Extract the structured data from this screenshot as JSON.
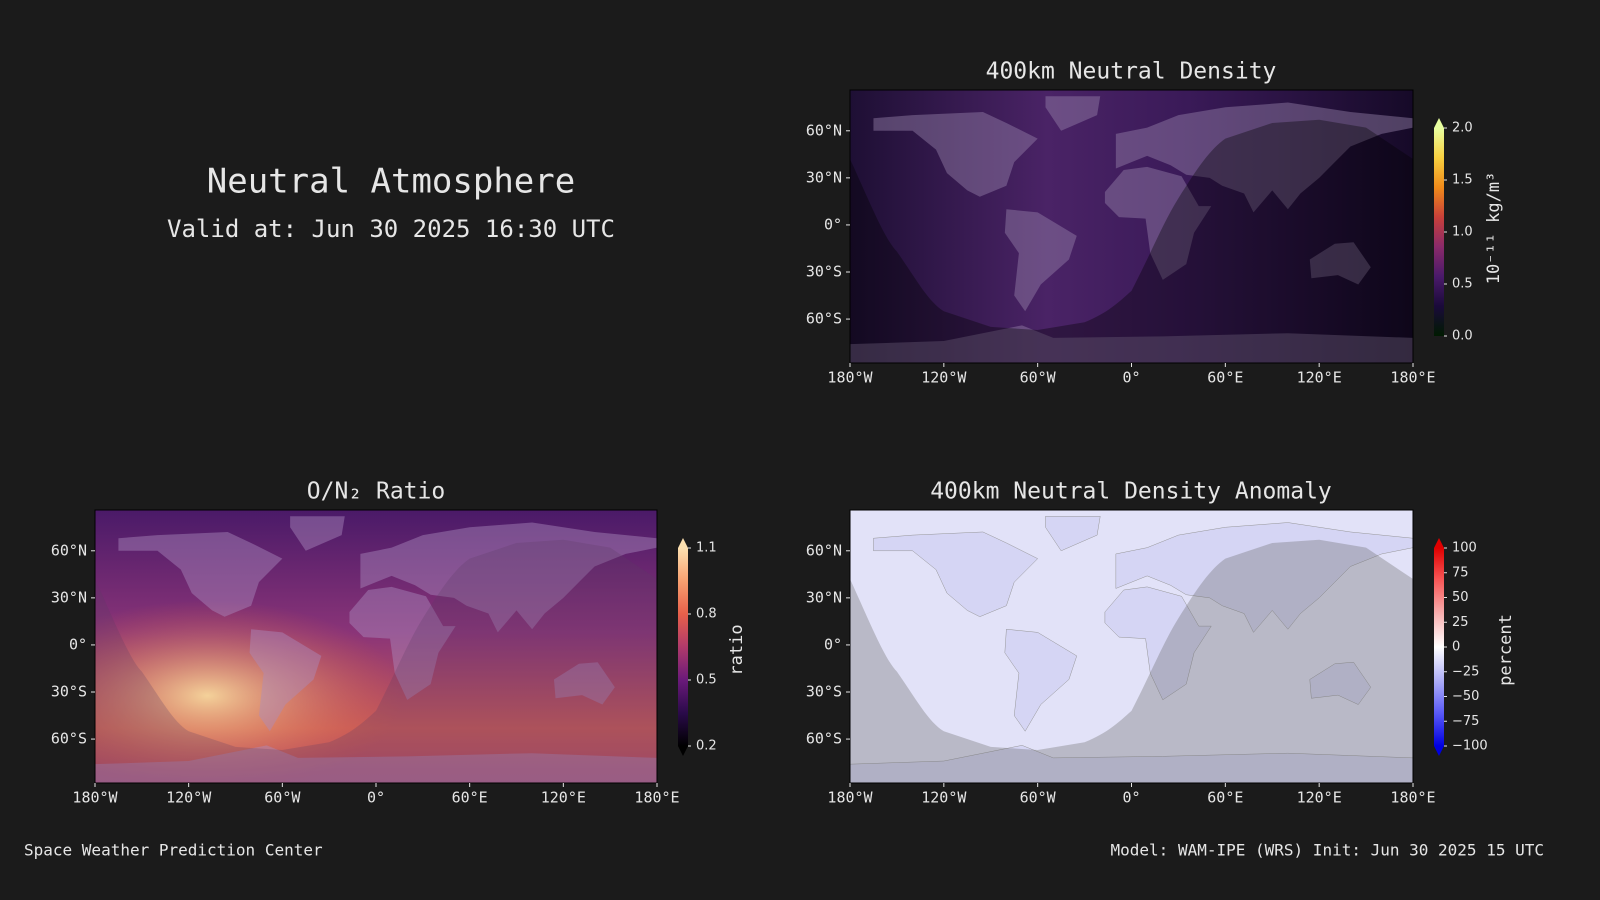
{
  "header": {
    "title": "Neutral Atmosphere",
    "valid": "Valid at: Jun 30 2025 16:30 UTC"
  },
  "footer": {
    "left": "Space Weather Prediction Center",
    "right": "Model: WAM-IPE (WRS) Init: Jun 30 2025 15 UTC"
  },
  "chart_data": [
    {
      "type": "map",
      "title": "400km Neutral Density",
      "xlim": [
        -180,
        180
      ],
      "ylim": [
        -88,
        86
      ],
      "xticks": [
        {
          "value": -180,
          "label": "180°W"
        },
        {
          "value": -120,
          "label": "120°W"
        },
        {
          "value": -60,
          "label": "60°W"
        },
        {
          "value": 0,
          "label": "0°"
        },
        {
          "value": 60,
          "label": "60°E"
        },
        {
          "value": 120,
          "label": "120°E"
        },
        {
          "value": 180,
          "label": "180°E"
        }
      ],
      "yticks": [
        {
          "value": 60,
          "label": "60°N"
        },
        {
          "value": 30,
          "label": "30°N"
        },
        {
          "value": 0,
          "label": "0°"
        },
        {
          "value": -30,
          "label": "30°S"
        },
        {
          "value": -60,
          "label": "60°S"
        }
      ],
      "colorbar": {
        "label": "10⁻¹¹ kg/m³",
        "clim": [
          0,
          2
        ],
        "extend": "max",
        "ticks": [
          {
            "value": 0,
            "label": "0.0"
          },
          0.5,
          {
            "value": 1,
            "label": "1.0"
          },
          1.5,
          {
            "value": 2,
            "label": "2.0"
          }
        ],
        "colors": [
          "#001a00",
          "#1a0a3a",
          "#4a1a6a",
          "#8a2a6a",
          "#c8403a",
          "#f08a1a",
          "#f8d040",
          "#e8ffa0"
        ]
      }
    },
    {
      "type": "map",
      "title": "O/N₂ Ratio",
      "xlim": [
        -180,
        180
      ],
      "ylim": [
        -88,
        86
      ],
      "xticks": [
        {
          "value": -180,
          "label": "180°W"
        },
        {
          "value": -120,
          "label": "120°W"
        },
        {
          "value": -60,
          "label": "60°W"
        },
        {
          "value": 0,
          "label": "0°"
        },
        {
          "value": 60,
          "label": "60°E"
        },
        {
          "value": 120,
          "label": "120°E"
        },
        {
          "value": 180,
          "label": "180°E"
        }
      ],
      "yticks": [
        {
          "value": 60,
          "label": "60°N"
        },
        {
          "value": 30,
          "label": "30°N"
        },
        {
          "value": 0,
          "label": "0°"
        },
        {
          "value": -30,
          "label": "30°S"
        },
        {
          "value": -60,
          "label": "60°S"
        }
      ],
      "colorbar": {
        "label": "ratio",
        "clim": [
          0.2,
          1.1
        ],
        "extend": "both",
        "ticks": [
          0.2,
          0.5,
          0.8,
          1.1
        ],
        "colors": [
          "#000000",
          "#2a0a4a",
          "#6a1a7a",
          "#b03a6a",
          "#e8604a",
          "#f8a070",
          "#fce0b0"
        ]
      }
    },
    {
      "type": "map",
      "title": "400km Neutral Density Anomaly",
      "xlim": [
        -180,
        180
      ],
      "ylim": [
        -88,
        86
      ],
      "xticks": [
        {
          "value": -180,
          "label": "180°W"
        },
        {
          "value": -120,
          "label": "120°W"
        },
        {
          "value": -60,
          "label": "60°W"
        },
        {
          "value": 0,
          "label": "0°"
        },
        {
          "value": 60,
          "label": "60°E"
        },
        {
          "value": 120,
          "label": "120°E"
        },
        {
          "value": 180,
          "label": "180°E"
        }
      ],
      "yticks": [
        {
          "value": 60,
          "label": "60°N"
        },
        {
          "value": 30,
          "label": "30°N"
        },
        {
          "value": 0,
          "label": "0°"
        },
        {
          "value": -30,
          "label": "30°S"
        },
        {
          "value": -60,
          "label": "60°S"
        }
      ],
      "colorbar": {
        "label": "percent",
        "clim": [
          -100,
          100
        ],
        "extend": "both",
        "ticks": [
          {
            "value": -100,
            "label": "−100"
          },
          {
            "value": -75,
            "label": "−75"
          },
          {
            "value": -50,
            "label": "−50"
          },
          {
            "value": -25,
            "label": "−25"
          },
          0,
          25,
          50,
          75,
          100
        ],
        "colors": [
          "#0000e0",
          "#5a5af8",
          "#b0b0f8",
          "#ffffff",
          "#f8b0b0",
          "#f85a5a",
          "#e00000"
        ]
      }
    }
  ]
}
